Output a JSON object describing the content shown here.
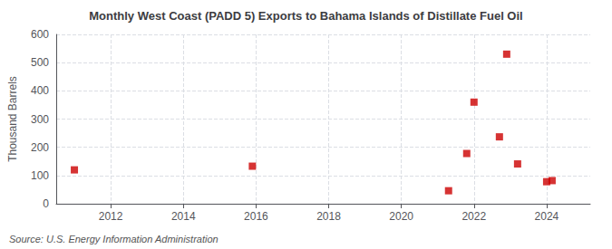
{
  "chart_data": {
    "type": "scatter",
    "title": "Monthly West Coast (PADD 5) Exports to Bahama Islands of Distillate Fuel Oil",
    "ylabel": "Thousand Barrels",
    "annotations": [
      "Source: U.S. Energy Information Administration"
    ],
    "x": [
      2011.0,
      2015.9,
      2021.3,
      2021.8,
      2022.0,
      2022.7,
      2022.9,
      2023.2,
      2024.0,
      2024.15
    ],
    "values": [
      120,
      133,
      46,
      178,
      360,
      237,
      530,
      141,
      78,
      82
    ],
    "color": "#cc0000",
    "marker": "square",
    "xlim": [
      2010.5,
      2025.2
    ],
    "ylim": [
      0,
      600
    ],
    "xticks": [
      2012,
      2014,
      2016,
      2018,
      2020,
      2022,
      2024
    ],
    "yticks": [
      0,
      100,
      200,
      300,
      400,
      500,
      600
    ],
    "grid": true
  }
}
